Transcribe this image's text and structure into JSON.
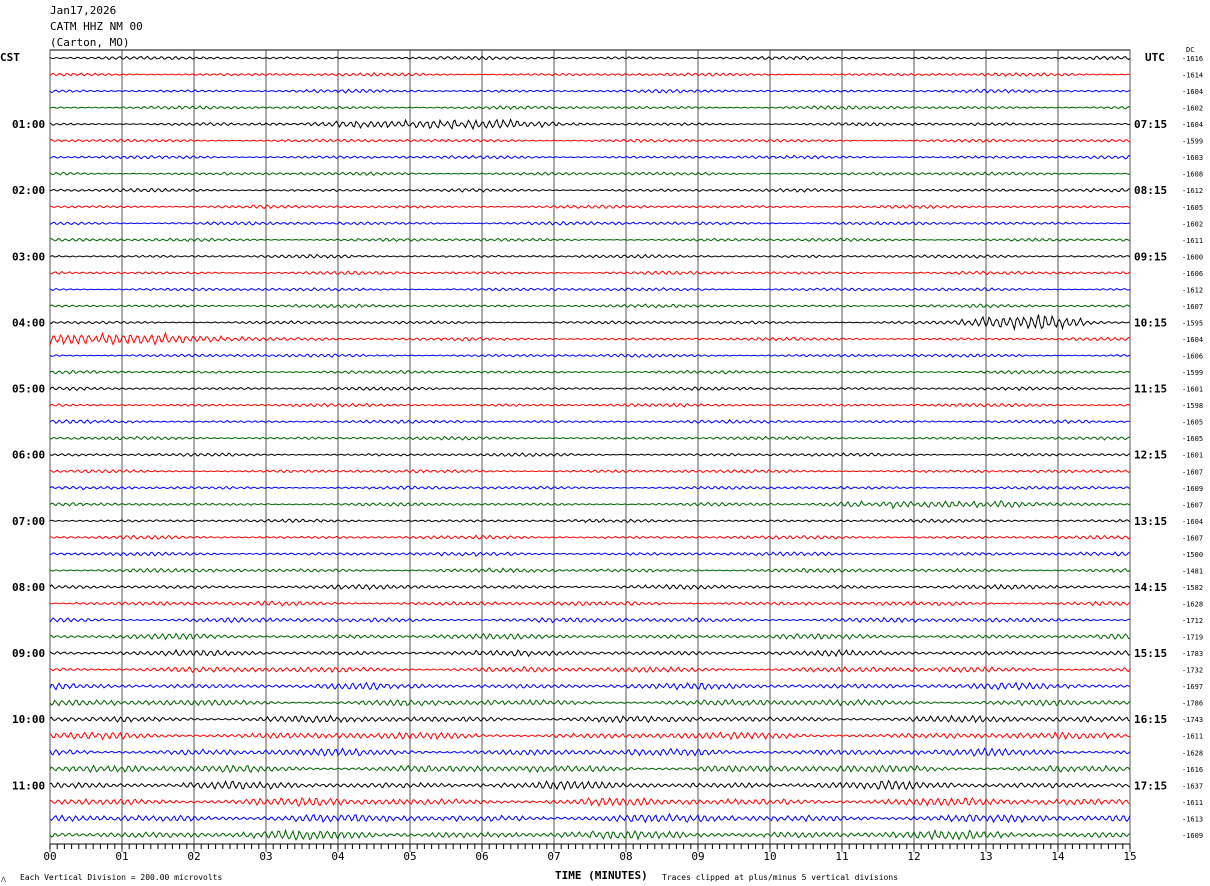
{
  "header": {
    "date": "Jan17,2026",
    "station": "CATM HHZ NM 00",
    "location": "(Carton, MO)"
  },
  "chart_data": {
    "type": "line",
    "title": "CATM HHZ NM 00 helicorder",
    "xlabel": "TIME (MINUTES)",
    "xlim": [
      0,
      15
    ],
    "x_ticks": [
      "00",
      "01",
      "02",
      "03",
      "04",
      "05",
      "06",
      "07",
      "08",
      "09",
      "10",
      "11",
      "12",
      "13",
      "14",
      "15"
    ],
    "left_axis_label": "CST",
    "right_axis_label": "UTC",
    "dc_label": "DC",
    "left_hour_labels": [
      "01:00",
      "02:00",
      "03:00",
      "04:00",
      "05:00",
      "06:00",
      "07:00",
      "08:00",
      "09:00",
      "10:00",
      "11:00"
    ],
    "right_hour_labels": [
      "07:15",
      "08:15",
      "09:15",
      "10:15",
      "11:15",
      "12:15",
      "13:15",
      "14:15",
      "15:15",
      "16:15",
      "17:15"
    ],
    "trace_colors": [
      "#000000",
      "#ff0000",
      "#0000ff",
      "#006400"
    ],
    "dc_offsets": [
      -1616,
      -1614,
      -1604,
      -1602,
      -1604,
      -1599,
      -1603,
      -1608,
      -1612,
      -1605,
      -1602,
      -1611,
      -1600,
      -1606,
      -1612,
      -1607,
      -1595,
      -1604,
      -1606,
      -1599,
      -1601,
      -1598,
      -1605,
      -1605,
      -1601,
      -1607,
      -1609,
      -1607,
      -1604,
      -1607,
      -1500,
      -1481,
      -1582,
      -1628,
      -1712,
      -1719,
      -1783,
      -1732,
      -1697,
      -1786,
      -1743,
      -1611,
      -1628,
      -1616,
      -1637,
      -1611,
      -1613,
      -1609
    ],
    "events": [
      {
        "trace": 4,
        "start_min": 3.5,
        "end_min": 8.0,
        "amplitude": 3
      },
      {
        "trace": 16,
        "start_min": 12.5,
        "end_min": 15,
        "amplitude": 4
      },
      {
        "trace": 17,
        "start_min": 0,
        "end_min": 4.0,
        "amplitude": 3.5
      },
      {
        "trace": 27,
        "start_min": 10.5,
        "end_min": 14.5,
        "amplitude": 2
      }
    ]
  },
  "footer": {
    "scale_note": "Each Vertical Division =  200.00 microvolts",
    "clip_note": "Traces clipped at plus/minus 5 vertical divisions"
  }
}
